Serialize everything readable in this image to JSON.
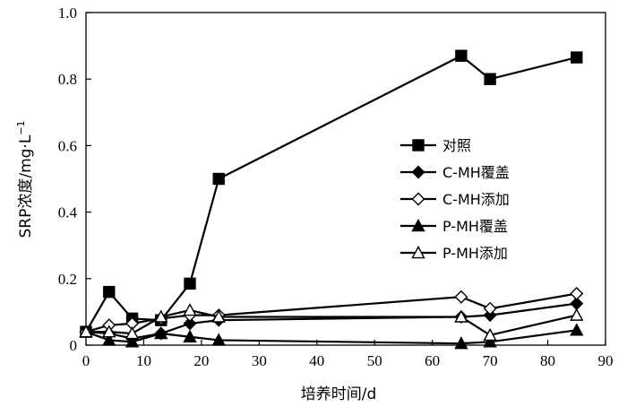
{
  "chart_data": {
    "type": "line",
    "xlabel": "培养时间/d",
    "ylabel_main": "SRP浓度/mg·L",
    "ylabel_sup": "−1",
    "xlim": [
      0,
      90
    ],
    "ylim": [
      0,
      1.0
    ],
    "xticks": [
      "0",
      "10",
      "20",
      "30",
      "40",
      "50",
      "60",
      "70",
      "80",
      "90"
    ],
    "yticks": [
      "0",
      "0.2",
      "0.4",
      "0.6",
      "0.8",
      "1.0"
    ],
    "legend_position": "center-right",
    "grid": false,
    "series": [
      {
        "name": "对照",
        "marker": "square-filled",
        "x": [
          0,
          4,
          8,
          13,
          18,
          23,
          65,
          70,
          85
        ],
        "y": [
          0.04,
          0.16,
          0.08,
          0.075,
          0.185,
          0.5,
          0.87,
          0.8,
          0.865
        ]
      },
      {
        "name": "C-MH覆盖",
        "marker": "diamond-filled",
        "x": [
          0,
          4,
          8,
          13,
          18,
          23,
          65,
          70,
          85
        ],
        "y": [
          0.04,
          0.035,
          0.02,
          0.035,
          0.065,
          0.075,
          0.085,
          0.09,
          0.125
        ]
      },
      {
        "name": "C-MH添加",
        "marker": "diamond-open",
        "x": [
          0,
          4,
          8,
          13,
          18,
          23,
          65,
          70,
          85
        ],
        "y": [
          0.04,
          0.06,
          0.065,
          0.08,
          0.09,
          0.09,
          0.145,
          0.11,
          0.155
        ]
      },
      {
        "name": "P-MH覆盖",
        "marker": "triangle-filled",
        "x": [
          0,
          4,
          8,
          13,
          18,
          23,
          65,
          70,
          85
        ],
        "y": [
          0.04,
          0.015,
          0.01,
          0.035,
          0.025,
          0.015,
          0.005,
          0.01,
          0.045
        ]
      },
      {
        "name": "P-MH添加",
        "marker": "triangle-open",
        "x": [
          0,
          4,
          8,
          13,
          18,
          23,
          65,
          70,
          85
        ],
        "y": [
          0.04,
          0.04,
          0.035,
          0.085,
          0.105,
          0.085,
          0.085,
          0.03,
          0.09
        ]
      }
    ]
  }
}
